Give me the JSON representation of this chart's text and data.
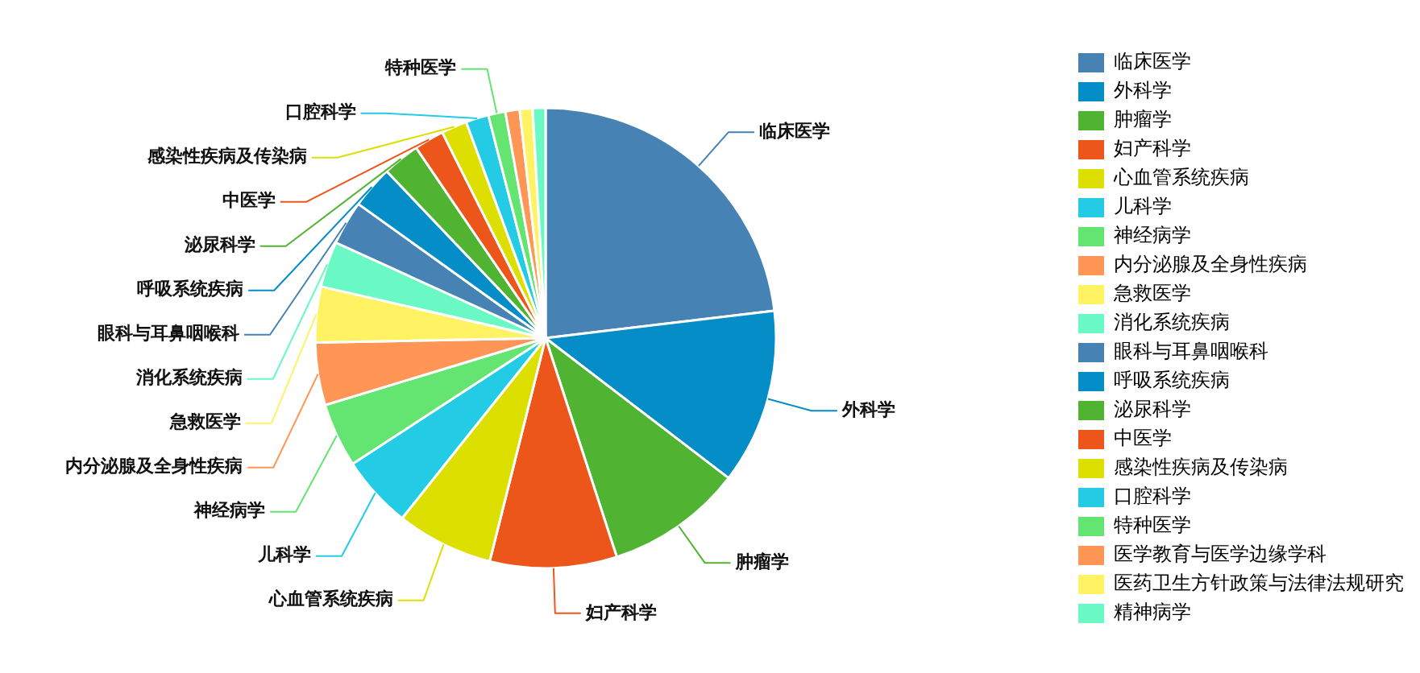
{
  "chart_data": {
    "type": "pie",
    "categories": [
      "临床医学",
      "外科学",
      "肿瘤学",
      "妇产科学",
      "心血管系统疾病",
      "儿科学",
      "神经病学",
      "内分泌腺及全身性疾病",
      "急救医学",
      "消化系统疾病",
      "眼科与耳鼻咽喉科",
      "呼吸系统疾病",
      "泌尿科学",
      "中医学",
      "感染性疾病及传染病",
      "口腔科学",
      "特种医学",
      "医学教育与医学边缘学科",
      "医药卫生方针政策与法律法规研究",
      "精神病学"
    ],
    "values": [
      23.1,
      12.3,
      9.6,
      8.9,
      6.8,
      5.1,
      4.5,
      4.4,
      3.9,
      3.2,
      3.1,
      3.0,
      2.6,
      2.1,
      1.8,
      1.6,
      1.2,
      1.0,
      0.9,
      0.9
    ],
    "colors": [
      "#4682b4",
      "#058dc7",
      "#50b432",
      "#ed561b",
      "#dddf00",
      "#24cbe5",
      "#64e572",
      "#ff9655",
      "#fff263",
      "#6af9c4",
      "#4682b4",
      "#058dc7",
      "#50b432",
      "#ed561b",
      "#dddf00",
      "#24cbe5",
      "#64e572",
      "#ff9655",
      "#fff263",
      "#6af9c4"
    ],
    "legend": "right"
  }
}
